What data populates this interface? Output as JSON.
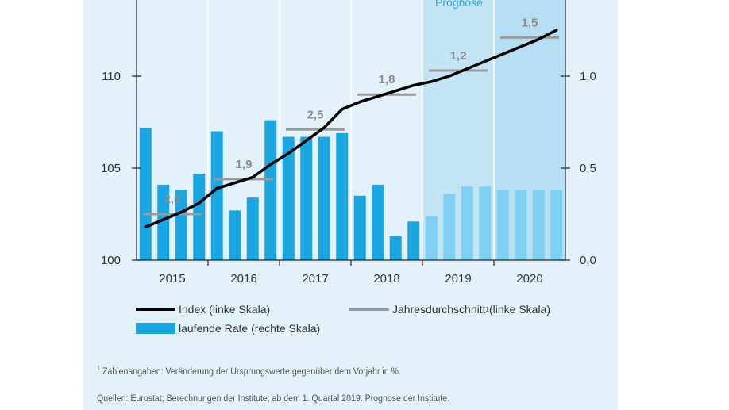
{
  "chart_data": {
    "type": "bar",
    "prognose_label": "Prognose",
    "years": [
      "2015",
      "2016",
      "2017",
      "2018",
      "2019",
      "2020"
    ],
    "left_axis": {
      "ylim": [
        100,
        115
      ],
      "ticks": [
        "100",
        "105",
        "110"
      ],
      "tick_values": [
        100,
        105,
        110
      ]
    },
    "right_axis": {
      "ylim": [
        0,
        1.5
      ],
      "ticks": [
        "0,0",
        "0,5",
        "1,0"
      ],
      "tick_values": [
        0,
        0.5,
        1.0
      ]
    },
    "series": [
      {
        "name": "laufende Rate (rechte Skala)",
        "axis": "right",
        "color": "#1aa7e1",
        "forecast_color": "#7fd0f2",
        "forecast_from_index": 16,
        "values": [
          0.72,
          0.41,
          0.38,
          0.47,
          0.7,
          0.27,
          0.34,
          0.76,
          0.67,
          0.67,
          0.67,
          0.69,
          0.35,
          0.41,
          0.13,
          0.21,
          0.24,
          0.36,
          0.4,
          0.4,
          0.38,
          0.38,
          0.38,
          0.38
        ]
      },
      {
        "name": "Index (linke Skala)",
        "axis": "left",
        "color": "#000000",
        "values": [
          101.8,
          102.2,
          102.6,
          103.1,
          103.9,
          104.2,
          104.5,
          105.2,
          105.8,
          106.5,
          107.2,
          108.2,
          108.6,
          108.9,
          109.2,
          109.5,
          109.7,
          110.0,
          110.4,
          110.8,
          111.2,
          111.6,
          112.0,
          112.5
        ]
      },
      {
        "name": "Jahresdurchschnitt",
        "name_sup": "1",
        "name_suffix": " (linke Skala)",
        "axis": "left",
        "color": "#9a9a9a",
        "values": [
          102.5,
          104.4,
          107.1,
          109.0,
          110.3,
          112.1
        ],
        "labels": [
          "2,0",
          "1,9",
          "2,5",
          "1,8",
          "1,2",
          "1,5"
        ]
      }
    ],
    "legend_placement": "bottom",
    "grid": false
  },
  "footnote": {
    "sup": "1",
    "text": " Zahlenangaben: Veränderung der Ursprungswerte gegenüber dem Vorjahr in %."
  },
  "sources": "Quellen: Eurostat; Berechnungen der Institute; ab dem 1. Quartal 2019: Prognose der Institute."
}
